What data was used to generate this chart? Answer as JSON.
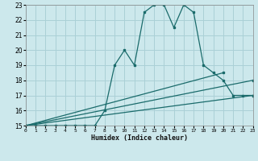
{
  "xlabel": "Humidex (Indice chaleur)",
  "ylabel": "",
  "bg_color": "#cce8ec",
  "grid_color": "#aad0d6",
  "line_color": "#1a6b6b",
  "xlim": [
    0,
    23
  ],
  "ylim": [
    15,
    23
  ],
  "xticks": [
    0,
    1,
    2,
    3,
    4,
    5,
    6,
    7,
    8,
    9,
    10,
    11,
    12,
    13,
    14,
    15,
    16,
    17,
    18,
    19,
    20,
    21,
    22,
    23
  ],
  "yticks": [
    15,
    16,
    17,
    18,
    19,
    20,
    21,
    22,
    23
  ],
  "lines": [
    {
      "x": [
        0,
        1,
        2,
        3,
        4,
        5,
        6,
        7,
        8,
        9,
        10,
        11,
        12,
        13,
        14,
        15,
        16,
        17,
        18,
        19,
        20,
        21,
        22,
        23
      ],
      "y": [
        15,
        15,
        15,
        15,
        15,
        15,
        15,
        15,
        16,
        19,
        20,
        19,
        22.5,
        23,
        23,
        21.5,
        23,
        22.5,
        19,
        18.5,
        18,
        17,
        17,
        17
      ]
    },
    {
      "x": [
        0,
        23
      ],
      "y": [
        15,
        17
      ]
    },
    {
      "x": [
        0,
        23
      ],
      "y": [
        15,
        18
      ]
    },
    {
      "x": [
        0,
        20
      ],
      "y": [
        15,
        18.5
      ]
    }
  ]
}
